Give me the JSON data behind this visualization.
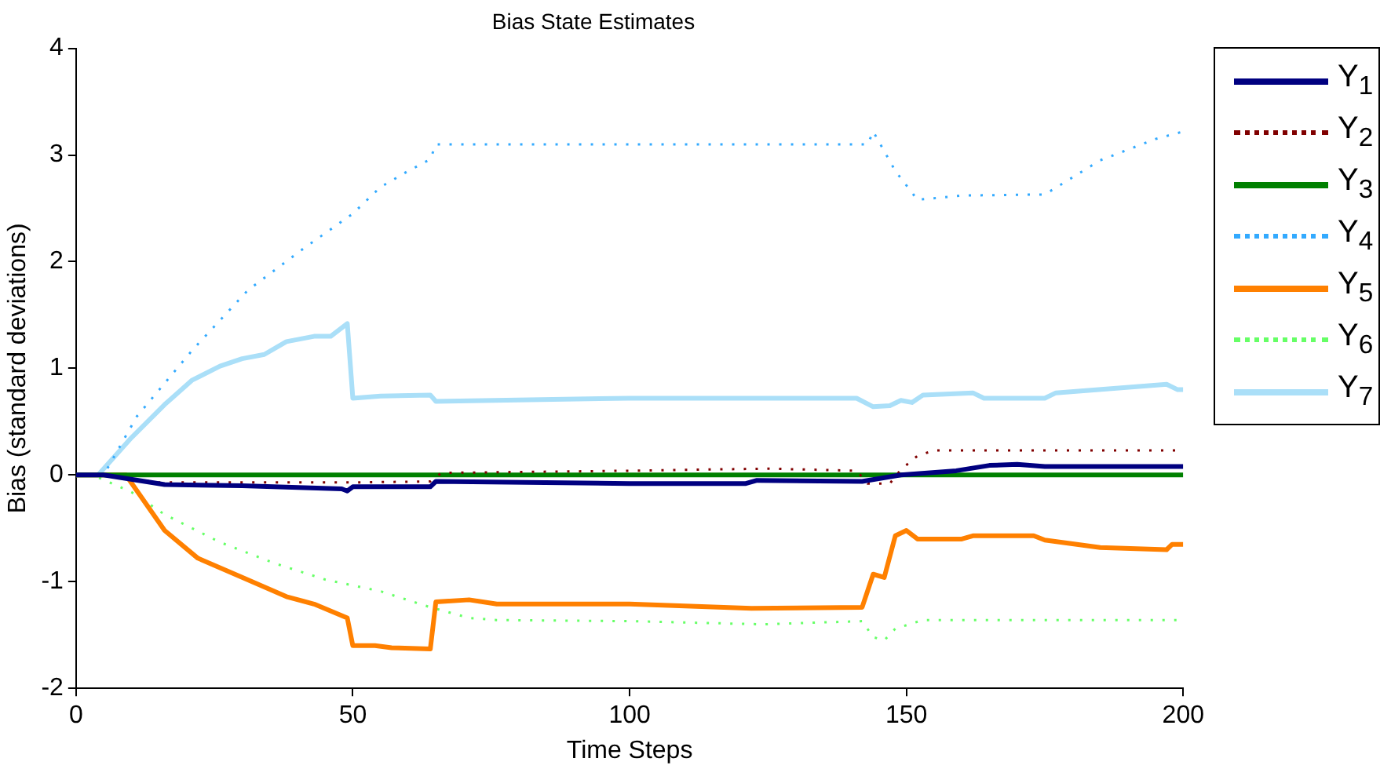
{
  "chart_data": {
    "type": "line",
    "title": "Bias State Estimates",
    "xlabel": "Time Steps",
    "ylabel": "Bias (standard deviations)",
    "xlim": [
      0,
      200
    ],
    "xticks": [
      0,
      50,
      100,
      150,
      200
    ],
    "ylim": [
      -2,
      4
    ],
    "yticks": [
      -2,
      -1,
      0,
      1,
      2,
      3,
      4
    ],
    "grid": false,
    "legend": "right",
    "marker": "none",
    "series": [
      {
        "name": "Y$_{1}$",
        "color": "#000080",
        "line_style": "solid",
        "x": [
          0,
          5,
          16,
          30,
          48,
          49,
          50,
          64,
          65,
          100,
          121,
          123,
          142,
          149,
          159,
          165,
          170,
          175,
          200
        ],
        "values": [
          0,
          0,
          -0.09,
          -0.1,
          -0.13,
          -0.15,
          -0.11,
          -0.11,
          -0.06,
          -0.08,
          -0.08,
          -0.05,
          -0.06,
          0,
          0.04,
          0.09,
          0.1,
          0.08,
          0.08
        ]
      },
      {
        "name": "Y$_{2}$",
        "color": "#800000",
        "line_style": "dotted",
        "x": [
          0,
          5,
          15,
          50,
          64,
          66,
          100,
          125,
          141,
          143,
          147,
          149,
          152,
          155,
          200
        ],
        "values": [
          0,
          0,
          -0.07,
          -0.07,
          -0.06,
          0.02,
          0.04,
          0.06,
          0.04,
          -0.08,
          -0.08,
          0.05,
          0.18,
          0.23,
          0.23
        ]
      },
      {
        "name": "Y$_{3}$",
        "color": "#008000",
        "line_style": "solid",
        "x": [
          0,
          200
        ],
        "values": [
          0,
          0
        ]
      },
      {
        "name": "Y$_{4}$",
        "color": "#33aaff",
        "line_style": "dotted",
        "x": [
          0,
          5,
          11,
          21,
          31,
          41,
          50,
          55,
          60,
          64,
          65,
          100,
          143,
          144,
          148,
          152,
          160,
          175,
          185,
          195,
          200
        ],
        "values": [
          0,
          0,
          0.55,
          1.17,
          1.73,
          2.12,
          2.45,
          2.7,
          2.85,
          2.96,
          3.1,
          3.1,
          3.1,
          3.22,
          2.85,
          2.58,
          2.62,
          2.63,
          2.95,
          3.15,
          3.22
        ]
      },
      {
        "name": "Y$_{5}$",
        "color": "#ff8000",
        "line_style": "solid",
        "x": [
          0,
          9,
          16,
          22,
          30,
          38,
          43,
          49,
          50,
          54,
          57,
          64,
          65,
          71,
          76,
          100,
          122,
          142,
          144,
          146,
          148,
          150,
          152,
          160,
          162,
          173,
          175,
          185,
          197,
          198,
          200
        ],
        "values": [
          0,
          0,
          -0.52,
          -0.78,
          -0.96,
          -1.14,
          -1.21,
          -1.34,
          -1.6,
          -1.6,
          -1.62,
          -1.63,
          -1.19,
          -1.17,
          -1.21,
          -1.21,
          -1.25,
          -1.24,
          -0.93,
          -0.96,
          -0.57,
          -0.52,
          -0.6,
          -0.6,
          -0.57,
          -0.57,
          -0.61,
          -0.68,
          -0.7,
          -0.65,
          -0.65
        ]
      },
      {
        "name": "Y$_{6}$",
        "color": "#66ff66",
        "line_style": "dotted",
        "x": [
          0,
          3,
          10,
          16,
          26,
          36,
          45,
          55,
          64,
          71,
          76,
          100,
          124,
          142,
          144,
          146,
          148,
          153,
          200
        ],
        "values": [
          0,
          0,
          -0.16,
          -0.37,
          -0.63,
          -0.83,
          -0.98,
          -1.09,
          -1.24,
          -1.34,
          -1.36,
          -1.37,
          -1.4,
          -1.37,
          -1.52,
          -1.55,
          -1.44,
          -1.36,
          -1.36
        ]
      },
      {
        "name": "Y$_{7}$",
        "color": "#aadff8",
        "line_style": "solid",
        "x": [
          0,
          4,
          10,
          16,
          21,
          26,
          30,
          34,
          38,
          43,
          46,
          49,
          50,
          55,
          64,
          65,
          100,
          141,
          144,
          147,
          149,
          151,
          153,
          162,
          164,
          175,
          177,
          197,
          199,
          200
        ],
        "values": [
          0,
          0,
          0.35,
          0.66,
          0.89,
          1.02,
          1.09,
          1.13,
          1.25,
          1.3,
          1.3,
          1.42,
          0.72,
          0.74,
          0.75,
          0.69,
          0.72,
          0.72,
          0.64,
          0.65,
          0.7,
          0.68,
          0.75,
          0.77,
          0.72,
          0.72,
          0.77,
          0.85,
          0.8,
          0.8
        ]
      }
    ]
  }
}
